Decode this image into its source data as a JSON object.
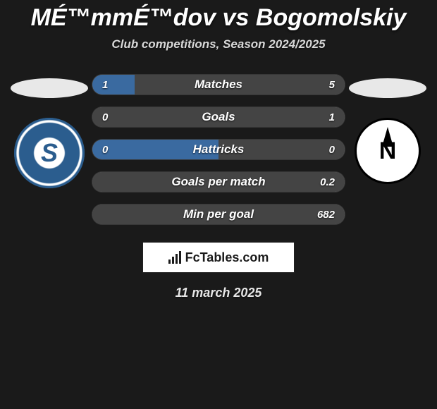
{
  "title": "MÉ™mmÉ™dov vs Bogomolskiy",
  "subtitle": "Club competitions, Season 2024/2025",
  "date": "11 march 2025",
  "brand": "FcTables.com",
  "colors": {
    "background": "#1a1a1a",
    "bar_bg": "#6f6f6f",
    "left_fill": "#3a6aa0",
    "right_fill": "#444444",
    "text": "#ffffff"
  },
  "bars": [
    {
      "label": "Matches",
      "left": "1",
      "right": "5",
      "left_pct": 16.7,
      "right_pct": 83.3
    },
    {
      "label": "Goals",
      "left": "0",
      "right": "1",
      "left_pct": 0,
      "right_pct": 100
    },
    {
      "label": "Hattricks",
      "left": "0",
      "right": "0",
      "left_pct": 50,
      "right_pct": 50
    },
    {
      "label": "Goals per match",
      "left": "",
      "right": "0.2",
      "left_pct": 0,
      "right_pct": 100
    },
    {
      "label": "Min per goal",
      "left": "",
      "right": "682",
      "left_pct": 0,
      "right_pct": 100
    }
  ]
}
